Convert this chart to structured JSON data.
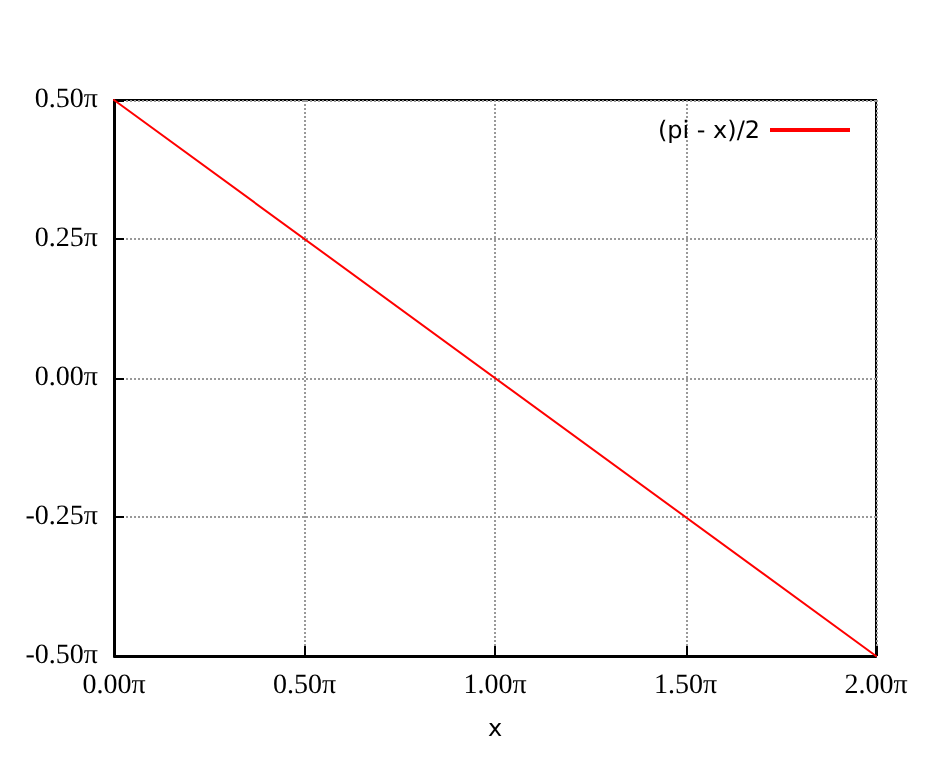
{
  "chart_data": {
    "type": "line",
    "xlabel": "x",
    "x": [
      0,
      6.283185
    ],
    "series": [
      {
        "name": "(pi - x)/2",
        "color": "#ff0000",
        "values": [
          1.570796,
          -1.570796
        ]
      }
    ],
    "xlim": [
      0,
      6.283185
    ],
    "xticks": [
      {
        "value": 0,
        "label": "0.00π"
      },
      {
        "value": 1.570796,
        "label": "0.50π"
      },
      {
        "value": 3.141593,
        "label": "1.00π"
      },
      {
        "value": 4.712389,
        "label": "1.50π"
      },
      {
        "value": 6.283185,
        "label": "2.00π"
      }
    ],
    "ylim": [
      -1.570796,
      1.570796
    ],
    "yticks": [
      {
        "value": -1.570796,
        "label": "-0.50π"
      },
      {
        "value": -0.785398,
        "label": "-0.25π"
      },
      {
        "value": 0,
        "label": "0.00π"
      },
      {
        "value": 0.785398,
        "label": "0.25π"
      },
      {
        "value": 1.570796,
        "label": "0.50π"
      }
    ],
    "grid": true,
    "legend": "top right",
    "marker": "none",
    "line_style": "solid"
  }
}
